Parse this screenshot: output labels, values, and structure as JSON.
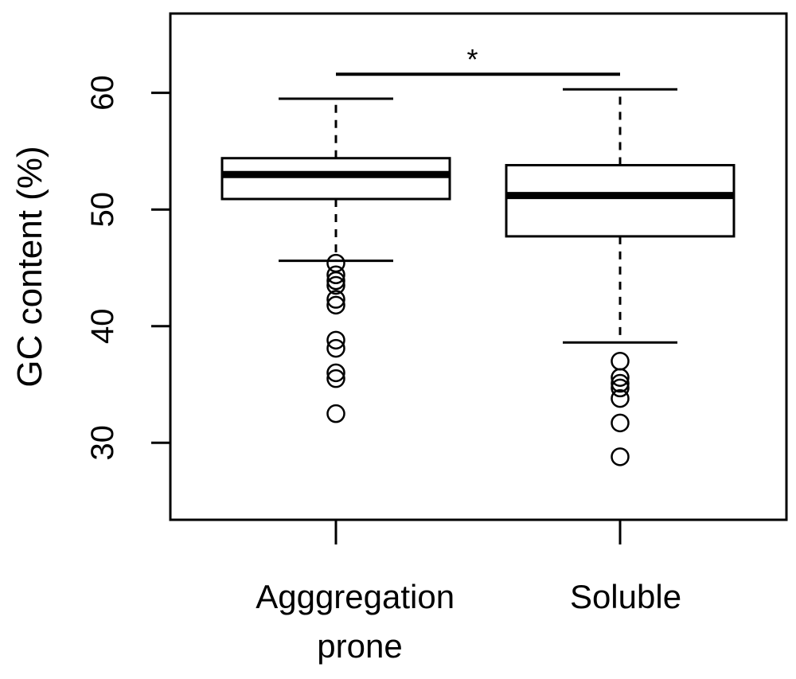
{
  "chart_data": {
    "type": "box",
    "ylabel": "GC content (%)",
    "xlabel": "",
    "ylim": [
      23.4,
      66.8
    ],
    "yticks": [
      "30",
      "40",
      "50",
      "60"
    ],
    "grid": false,
    "categories": [
      {
        "lines": [
          "Agggregation",
          "prone"
        ]
      },
      {
        "lines": [
          "Soluble"
        ]
      }
    ],
    "boxes": [
      {
        "whisker_low": 45.6,
        "q1": 50.9,
        "median": 53.0,
        "q3": 54.4,
        "whisker_high": 59.5,
        "outliers": [
          45.4,
          44.4,
          43.9,
          43.5,
          42.3,
          41.8,
          38.8,
          38.1,
          36.0,
          35.5,
          32.5
        ]
      },
      {
        "whisker_low": 38.6,
        "q1": 47.7,
        "median": 51.2,
        "q3": 53.8,
        "whisker_high": 60.3,
        "outliers": [
          37.0,
          35.6,
          35.1,
          34.7,
          33.8,
          31.7,
          28.8
        ]
      }
    ],
    "annotation": {
      "text": "*",
      "y": 61.6,
      "from": 0,
      "to": 1
    }
  }
}
